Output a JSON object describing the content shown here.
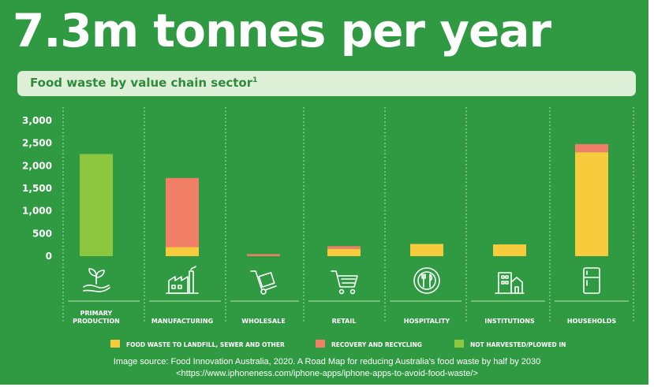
{
  "headline": "7.3m tonnes per year",
  "subtitle": {
    "text": "Food waste by value chain sector",
    "footnote": "1"
  },
  "colors": {
    "background": "#2f9a42",
    "landfill": "#f6cb3c",
    "recovery": "#f17e66",
    "not_harvested": "#8dc63f",
    "subtitle_bg": "#dff0d8",
    "subtitle_text": "#2f8a3c"
  },
  "chart_data": {
    "type": "bar",
    "stacked": true,
    "categories": [
      [
        "PRIMARY",
        "PRODUCTION"
      ],
      [
        "MANUFACTURING"
      ],
      [
        "WHOLESALE"
      ],
      [
        "RETAIL"
      ],
      [
        "HOSPITALITY"
      ],
      [
        "INSTITUTIONS"
      ],
      [
        "HOUSEHOLDS"
      ]
    ],
    "icons": [
      "plant-hand-icon",
      "factory-icon",
      "hand-truck-icon",
      "shopping-cart-icon",
      "plate-cutlery-icon",
      "building-icon",
      "fridge-icon"
    ],
    "series": [
      {
        "name": "FOOD WASTE TO LANDFILL, SEWER AND OTHER",
        "color": "#f6cb3c",
        "values": [
          0,
          200,
          0,
          160,
          270,
          260,
          2300
        ]
      },
      {
        "name": "RECOVERY AND RECYCLING",
        "color": "#f17e66",
        "values": [
          0,
          1530,
          45,
          60,
          0,
          0,
          180
        ]
      },
      {
        "name": "NOT HARVESTED/PLOWED IN",
        "color": "#8dc63f",
        "values": [
          2260,
          0,
          0,
          0,
          0,
          0,
          0
        ]
      }
    ],
    "yticks": [
      "0",
      "500",
      "1,000",
      "1,500",
      "2,000",
      "2,500",
      "3,000"
    ],
    "ylim": [
      0,
      3000
    ],
    "grid": "dotted vertical separators",
    "legend_position": "bottom"
  },
  "source": {
    "line1": "Image source:  Food Innovation Australia, 2020. A Road Map for reducing Australia's food waste by half by 2030",
    "line2": "<https://www.iphoneness.com/iphone-apps/iphone-apps-to-avoid-food-waste/>"
  }
}
